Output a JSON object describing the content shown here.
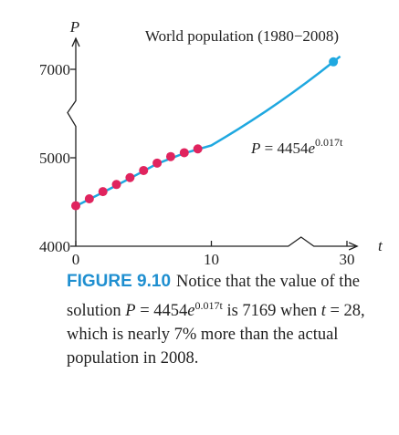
{
  "chart_data": {
    "type": "line",
    "title": "World population (1980−2008)",
    "x_label": "t",
    "y_label": "P",
    "xlim": [
      0,
      31.5
    ],
    "ylim": [
      4000,
      7700
    ],
    "xticks": [
      0,
      10,
      30
    ],
    "yticks": [
      4000,
      5000,
      7000
    ],
    "series": [
      {
        "style": "markers",
        "color": "#e0245e",
        "x": [
          0,
          1,
          2,
          3,
          4,
          5,
          6,
          7,
          8,
          9
        ],
        "values": [
          4458,
          4536,
          4617,
          4698,
          4776,
          4856,
          4940,
          5027,
          5114,
          5201
        ]
      },
      {
        "style": "line",
        "color": "#1fa8e0",
        "x": [
          0,
          2,
          4,
          6,
          8,
          10,
          12,
          14,
          16,
          18,
          20,
          22,
          24,
          26,
          28,
          29
        ],
        "values": [
          4454,
          4608,
          4767.4,
          4932.3,
          5102.9,
          5279.3,
          5461.9,
          5650.8,
          5846.3,
          6048.4,
          6257.6,
          6474.1,
          6698,
          6929.6,
          7169.3,
          7292.2
        ]
      }
    ],
    "highlight": {
      "x": 28,
      "value": 7169,
      "color": "#1fa8e0"
    },
    "equation": {
      "lhs": "P",
      "rhs": " = 4454",
      "base": "e",
      "exponent": "0.017t"
    }
  },
  "caption": {
    "label": "FIGURE 9.10",
    "parts": [
      "Notice that the value of the solution ",
      "P",
      " = 4454",
      "e",
      "0.017t",
      " is 7169 when ",
      "t",
      " = 28, which is nearly 7% more than the actual population in 2008."
    ]
  }
}
